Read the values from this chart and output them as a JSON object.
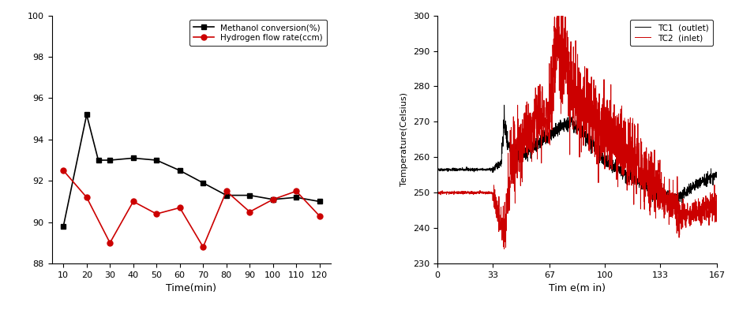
{
  "left": {
    "methanol_x": [
      10,
      20,
      25,
      30,
      40,
      50,
      60,
      70,
      80,
      90,
      100,
      110,
      120
    ],
    "methanol_y": [
      89.8,
      95.2,
      93.0,
      93.0,
      93.1,
      93.0,
      92.5,
      91.9,
      91.3,
      91.3,
      91.1,
      91.2,
      91.0
    ],
    "hydrogen_x": [
      10,
      20,
      30,
      40,
      50,
      60,
      70,
      80,
      90,
      100,
      110,
      120
    ],
    "hydrogen_y": [
      92.5,
      91.2,
      89.0,
      91.0,
      90.4,
      90.7,
      88.8,
      91.5,
      90.5,
      91.1,
      91.5,
      90.3
    ],
    "methanol_color": "#000000",
    "hydrogen_color": "#cc0000",
    "methanol_marker": "s",
    "hydrogen_marker": "o",
    "xlabel": "Time(min)",
    "xlim": [
      5,
      125
    ],
    "ylim": [
      88,
      100
    ],
    "yticks": [
      88,
      90,
      92,
      94,
      96,
      98,
      100
    ],
    "xticks": [
      10,
      20,
      30,
      40,
      50,
      60,
      70,
      80,
      90,
      100,
      110,
      120
    ],
    "legend_methanol": "Methanol conversion(%)",
    "legend_hydrogen": "Hydrogen flow rate(ccm)"
  },
  "right": {
    "xlabel": "Tim e(m in)",
    "ylabel": "Temperature(Celsius)",
    "xlim": [
      0,
      167
    ],
    "ylim": [
      230,
      300
    ],
    "yticks": [
      230,
      240,
      250,
      260,
      270,
      280,
      290,
      300
    ],
    "xticks": [
      0,
      33,
      67,
      100,
      133,
      167
    ],
    "legend_tc1": "TC1  (outlet)",
    "legend_tc2": "TC2  (inlet)",
    "tc1_color": "#000000",
    "tc2_color": "#cc0000"
  }
}
